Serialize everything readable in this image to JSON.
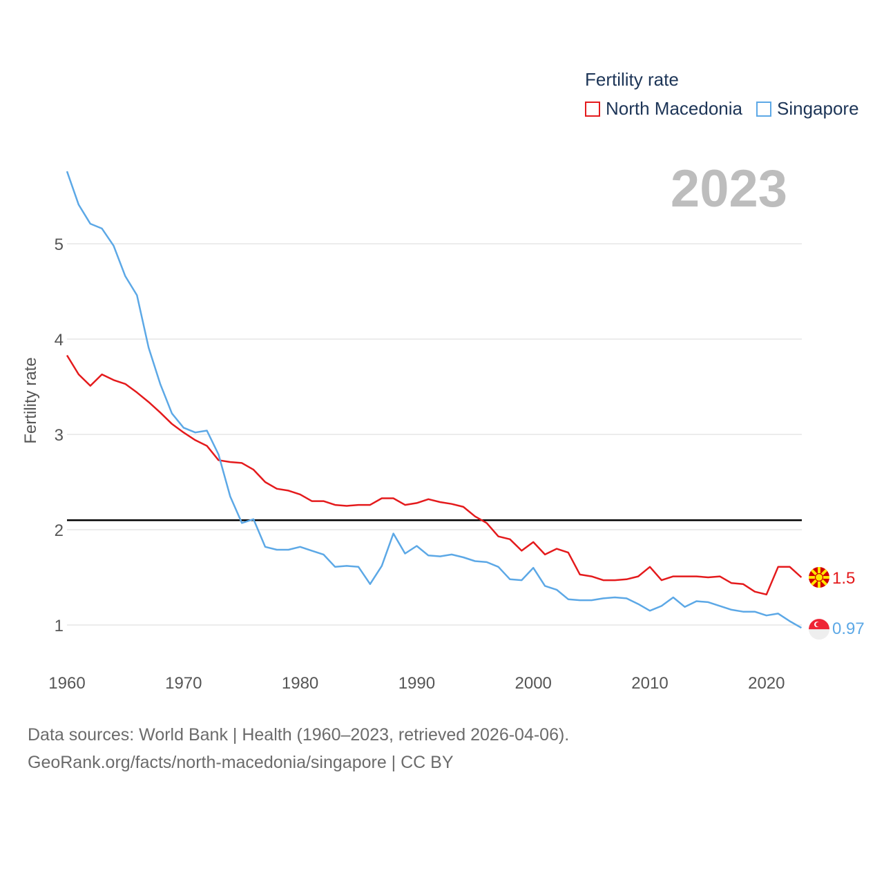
{
  "legend": {
    "title": "Fertility rate",
    "items": [
      {
        "name": "North Macedonia",
        "color": "#e41a1c"
      },
      {
        "name": "Singapore",
        "color": "#5ca8e6"
      }
    ]
  },
  "year_badge": "2023",
  "source": {
    "line1": "Data sources: World Bank | Health (1960–2023, retrieved 2026-04-06).",
    "line2": "GeoRank.org/facts/north-macedonia/singapore | CC BY"
  },
  "chart_data": {
    "type": "line",
    "ylabel": "Fertility rate",
    "xlim": [
      1960,
      2024
    ],
    "ylim": [
      0.6,
      6.0
    ],
    "xticks": [
      "1960",
      "1970",
      "1980",
      "1990",
      "2000",
      "2010",
      "2020"
    ],
    "yticks": [
      "1",
      "2",
      "3",
      "4",
      "5"
    ],
    "reference_line": {
      "y": 2.1,
      "color": "#000000"
    },
    "x": [
      1960,
      1961,
      1962,
      1963,
      1964,
      1965,
      1966,
      1967,
      1968,
      1969,
      1970,
      1971,
      1972,
      1973,
      1974,
      1975,
      1976,
      1977,
      1978,
      1979,
      1980,
      1981,
      1982,
      1983,
      1984,
      1985,
      1986,
      1987,
      1988,
      1989,
      1990,
      1991,
      1992,
      1993,
      1994,
      1995,
      1996,
      1997,
      1998,
      1999,
      2000,
      2001,
      2002,
      2003,
      2004,
      2005,
      2006,
      2007,
      2008,
      2009,
      2010,
      2011,
      2012,
      2013,
      2014,
      2015,
      2016,
      2017,
      2018,
      2019,
      2020,
      2021,
      2022,
      2023
    ],
    "series": [
      {
        "name": "North Macedonia",
        "color": "#e41a1c",
        "end_label": "1.5",
        "flag": "north-macedonia-flag-icon",
        "values": [
          3.83,
          3.63,
          3.51,
          3.63,
          3.57,
          3.53,
          3.44,
          3.34,
          3.23,
          3.11,
          3.02,
          2.94,
          2.88,
          2.73,
          2.71,
          2.7,
          2.63,
          2.5,
          2.43,
          2.41,
          2.37,
          2.3,
          2.3,
          2.26,
          2.25,
          2.26,
          2.26,
          2.33,
          2.33,
          2.26,
          2.28,
          2.32,
          2.29,
          2.27,
          2.24,
          2.14,
          2.07,
          1.93,
          1.9,
          1.78,
          1.87,
          1.74,
          1.8,
          1.76,
          1.53,
          1.51,
          1.47,
          1.47,
          1.48,
          1.51,
          1.61,
          1.47,
          1.51,
          1.51,
          1.51,
          1.5,
          1.51,
          1.44,
          1.43,
          1.35,
          1.32,
          1.61,
          1.61,
          1.5
        ]
      },
      {
        "name": "Singapore",
        "color": "#5ca8e6",
        "end_label": "0.97",
        "flag": "singapore-flag-icon",
        "values": [
          5.76,
          5.41,
          5.21,
          5.16,
          4.98,
          4.66,
          4.46,
          3.91,
          3.53,
          3.22,
          3.07,
          3.02,
          3.04,
          2.79,
          2.35,
          2.07,
          2.11,
          1.82,
          1.79,
          1.79,
          1.82,
          1.78,
          1.74,
          1.61,
          1.62,
          1.61,
          1.43,
          1.62,
          1.96,
          1.75,
          1.83,
          1.73,
          1.72,
          1.74,
          1.71,
          1.67,
          1.66,
          1.61,
          1.48,
          1.47,
          1.6,
          1.41,
          1.37,
          1.27,
          1.26,
          1.26,
          1.28,
          1.29,
          1.28,
          1.22,
          1.15,
          1.2,
          1.29,
          1.19,
          1.25,
          1.24,
          1.2,
          1.16,
          1.14,
          1.14,
          1.1,
          1.12,
          1.04,
          0.97
        ]
      }
    ]
  }
}
